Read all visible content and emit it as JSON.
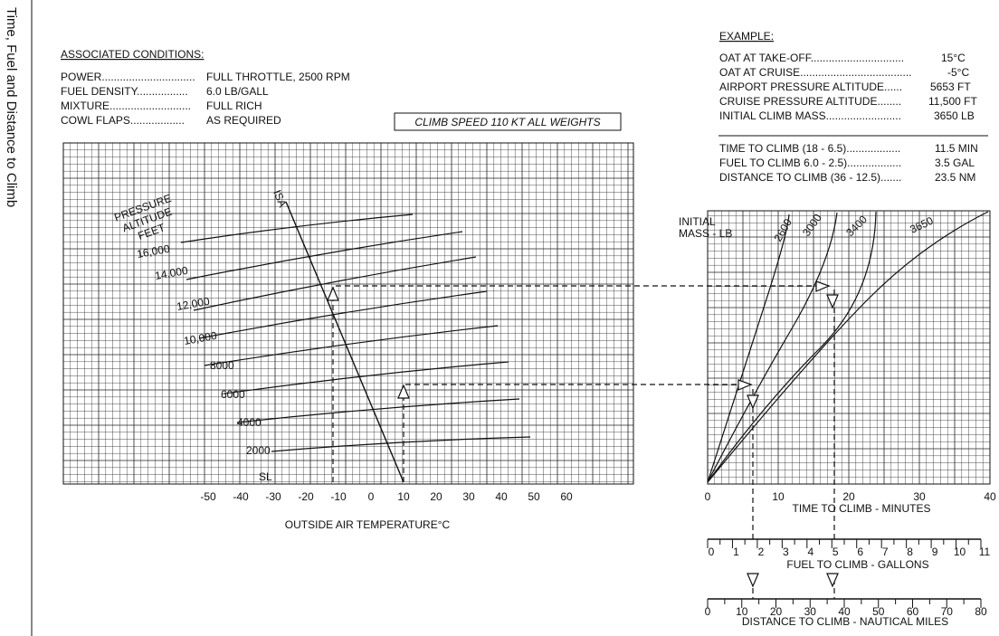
{
  "sidebar_title": "Time, Fuel and Distance to Climb",
  "conditions": {
    "header": "ASSOCIATED CONDITIONS:",
    "rows": [
      {
        "label": "POWER...............................",
        "value": "FULL THROTTLE,  2500 RPM"
      },
      {
        "label": "FUEL DENSITY.................",
        "value": "6.0 LB/GALL"
      },
      {
        "label": "MIXTURE...........................",
        "value": "FULL RICH"
      },
      {
        "label": "COWL FLAPS..................",
        "value": "AS REQUIRED"
      }
    ]
  },
  "climb_speed_label": "CLIMB SPEED  110 KT ALL WEIGHTS",
  "example": {
    "header": "EXAMPLE:",
    "rows": [
      {
        "label": "OAT AT TAKE-OFF...............................",
        "value": "15°C"
      },
      {
        "label": "OAT AT CRUISE.....................................",
        "value": "-5°C"
      },
      {
        "label": "AIRPORT PRESSURE ALTITUDE......",
        "value": "5653 FT"
      },
      {
        "label": "CRUISE PRESSURE ALTITUDE........",
        "value": "11,500 FT"
      },
      {
        "label": "INITIAL CLIMB MASS.........................",
        "value": "3650 LB"
      }
    ],
    "results": [
      {
        "label": "TIME TO CLIMB (18 - 6.5)..................",
        "value": "11.5 MIN"
      },
      {
        "label": "FUEL TO CLIMB 6.0 - 2.5)..................",
        "value": "3.5 GAL"
      },
      {
        "label": "DISTANCE TO CLIMB (36 - 12.5).......",
        "value": "23.5 NM"
      }
    ]
  },
  "chart_data": [
    {
      "type": "line",
      "xlabel": "OUTSIDE AIR TEMPERATURE°C",
      "xlim": [
        -60,
        60
      ],
      "xticks": [
        "-50",
        "-40",
        "-30",
        "-20",
        "-10",
        "0",
        "10",
        "20",
        "30",
        "40",
        "50",
        "60"
      ],
      "curve_title": [
        "PRESSURE",
        "ALTITUDE",
        "FEET"
      ],
      "isa_label": "ISA",
      "isa_line": {
        "top_oat": -17,
        "top_alt": 16000,
        "bottom_oat": 14,
        "bottom_alt": 0
      },
      "series": [
        {
          "name": "SL",
          "alt": 0
        },
        {
          "name": "2000",
          "alt": 2000
        },
        {
          "name": "4000",
          "alt": 4000
        },
        {
          "name": "6000",
          "alt": 6000
        },
        {
          "name": "8000",
          "alt": 8000
        },
        {
          "name": "10,000",
          "alt": 10000
        },
        {
          "name": "12,000",
          "alt": 12000
        },
        {
          "name": "14,000",
          "alt": 14000
        },
        {
          "name": "16,000",
          "alt": 16000
        }
      ],
      "example_oat": [
        -5,
        15
      ]
    },
    {
      "type": "line",
      "xlabel": "TIME TO CLIMB - MINUTES",
      "xlim": [
        0,
        40
      ],
      "xticks": [
        "0",
        "10",
        "20",
        "30",
        "40"
      ],
      "legend_title": [
        "INITIAL",
        "MASS - LB"
      ],
      "series": [
        {
          "name": "2600"
        },
        {
          "name": "3000"
        },
        {
          "name": "3400"
        },
        {
          "name": "3650"
        }
      ],
      "example_time": [
        6.5,
        18
      ]
    },
    {
      "type": "scale",
      "xlabel": "FUEL TO CLIMB - GALLONS",
      "xlim": [
        0,
        11
      ],
      "xticks": [
        "0",
        "1",
        "2",
        "3",
        "4",
        "5",
        "6",
        "7",
        "8",
        "9",
        "10",
        "11"
      ],
      "example_values": [
        2.5,
        6.0
      ]
    },
    {
      "type": "scale",
      "xlabel": "DISTANCE TO CLIMB - NAUTICAL MILES",
      "xlim": [
        0,
        80
      ],
      "xticks": [
        "0",
        "10",
        "20",
        "30",
        "40",
        "50",
        "60",
        "70",
        "80"
      ],
      "example_values": [
        12.5,
        36
      ]
    }
  ]
}
